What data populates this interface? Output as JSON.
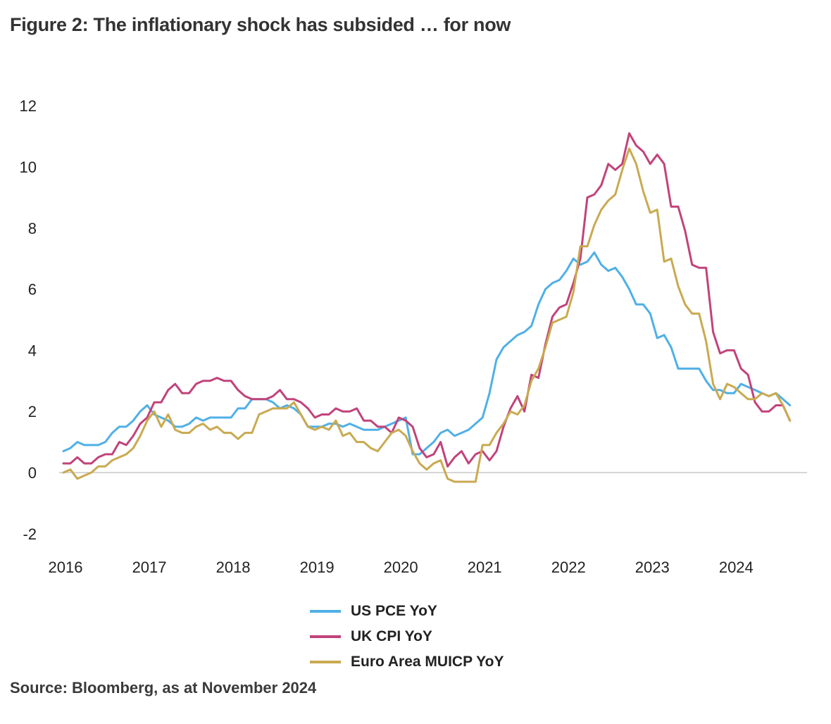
{
  "title": "Figure 2: The inflationary shock has subsided … for now",
  "source": "Source: Bloomberg, as at November 2024",
  "chart_data": {
    "type": "line",
    "x_start": "2016-01",
    "x_step": "month",
    "x_ticks": [
      "2016",
      "2017",
      "2018",
      "2019",
      "2020",
      "2021",
      "2022",
      "2023",
      "2024"
    ],
    "y_ticks": [
      "12",
      "10",
      "8",
      "6",
      "4",
      "2",
      "0",
      "-2"
    ],
    "ylim": [
      -2,
      12
    ],
    "grid": false,
    "legend_position": "bottom",
    "series": [
      {
        "name": "US PCE YoY",
        "color": "#4fb0e6",
        "values": [
          0.7,
          0.8,
          1.0,
          0.9,
          0.9,
          0.9,
          1.0,
          1.3,
          1.5,
          1.5,
          1.7,
          2.0,
          2.2,
          1.9,
          1.8,
          1.7,
          1.5,
          1.5,
          1.6,
          1.8,
          1.7,
          1.8,
          1.8,
          1.8,
          1.8,
          2.1,
          2.1,
          2.4,
          2.4,
          2.4,
          2.3,
          2.1,
          2.2,
          2.1,
          1.9,
          1.5,
          1.5,
          1.5,
          1.6,
          1.6,
          1.5,
          1.6,
          1.5,
          1.4,
          1.4,
          1.4,
          1.5,
          1.6,
          1.7,
          1.8,
          0.6,
          0.6,
          0.8,
          1.0,
          1.3,
          1.4,
          1.2,
          1.3,
          1.4,
          1.6,
          1.8,
          2.6,
          3.7,
          4.1,
          4.3,
          4.5,
          4.6,
          4.8,
          5.5,
          6.0,
          6.2,
          6.3,
          6.6,
          7.0,
          6.8,
          6.9,
          7.2,
          6.8,
          6.6,
          6.7,
          6.4,
          6.0,
          5.5,
          5.5,
          5.2,
          4.4,
          4.5,
          4.1,
          3.4,
          3.4,
          3.4,
          3.4,
          3.0,
          2.7,
          2.7,
          2.6,
          2.6,
          2.9,
          2.8,
          2.7,
          2.6,
          2.5,
          2.6,
          2.4,
          2.2
        ],
        "label": null
      },
      {
        "name": "UK CPI YoY",
        "color": "#c1437a",
        "values": [
          0.3,
          0.3,
          0.5,
          0.3,
          0.3,
          0.5,
          0.6,
          0.6,
          1.0,
          0.9,
          1.2,
          1.6,
          1.8,
          2.3,
          2.3,
          2.7,
          2.9,
          2.6,
          2.6,
          2.9,
          3.0,
          3.0,
          3.1,
          3.0,
          3.0,
          2.7,
          2.5,
          2.4,
          2.4,
          2.4,
          2.5,
          2.7,
          2.4,
          2.4,
          2.3,
          2.1,
          1.8,
          1.9,
          1.9,
          2.1,
          2.0,
          2.0,
          2.1,
          1.7,
          1.7,
          1.5,
          1.5,
          1.3,
          1.8,
          1.7,
          1.5,
          0.8,
          0.5,
          0.6,
          1.0,
          0.2,
          0.5,
          0.7,
          0.3,
          0.6,
          0.7,
          0.4,
          0.7,
          1.5,
          2.1,
          2.5,
          2.0,
          3.2,
          3.1,
          4.2,
          5.1,
          5.4,
          5.5,
          6.2,
          7.0,
          9.0,
          9.1,
          9.4,
          10.1,
          9.9,
          10.1,
          11.1,
          10.7,
          10.5,
          10.1,
          10.4,
          10.1,
          8.7,
          8.7,
          7.9,
          6.8,
          6.7,
          6.7,
          4.6,
          3.9,
          4.0,
          4.0,
          3.4,
          3.2,
          2.3,
          2.0,
          2.0,
          2.2,
          2.2,
          1.7
        ],
        "label": null
      },
      {
        "name": "Euro Area MUICP YoY",
        "color": "#c9aa50",
        "values": [
          0.0,
          0.1,
          -0.2,
          -0.1,
          0.0,
          0.2,
          0.2,
          0.4,
          0.5,
          0.6,
          0.8,
          1.2,
          1.7,
          2.0,
          1.5,
          1.9,
          1.4,
          1.3,
          1.3,
          1.5,
          1.6,
          1.4,
          1.5,
          1.3,
          1.3,
          1.1,
          1.3,
          1.3,
          1.9,
          2.0,
          2.1,
          2.1,
          2.1,
          2.3,
          1.9,
          1.5,
          1.4,
          1.5,
          1.4,
          1.7,
          1.2,
          1.3,
          1.0,
          1.0,
          0.8,
          0.7,
          1.0,
          1.3,
          1.4,
          1.2,
          0.7,
          0.3,
          0.1,
          0.3,
          0.4,
          -0.2,
          -0.3,
          -0.3,
          -0.3,
          -0.3,
          0.9,
          0.9,
          1.3,
          1.6,
          2.0,
          1.9,
          2.2,
          3.0,
          3.4,
          4.1,
          4.9,
          5.0,
          5.1,
          5.9,
          7.4,
          7.4,
          8.1,
          8.6,
          8.9,
          9.1,
          9.9,
          10.6,
          10.1,
          9.2,
          8.5,
          8.6,
          6.9,
          7.0,
          6.1,
          5.5,
          5.2,
          5.2,
          4.3,
          2.9,
          2.4,
          2.9,
          2.8,
          2.6,
          2.4,
          2.4,
          2.6,
          2.5,
          2.6,
          2.2,
          1.7
        ],
        "label": null
      }
    ]
  }
}
